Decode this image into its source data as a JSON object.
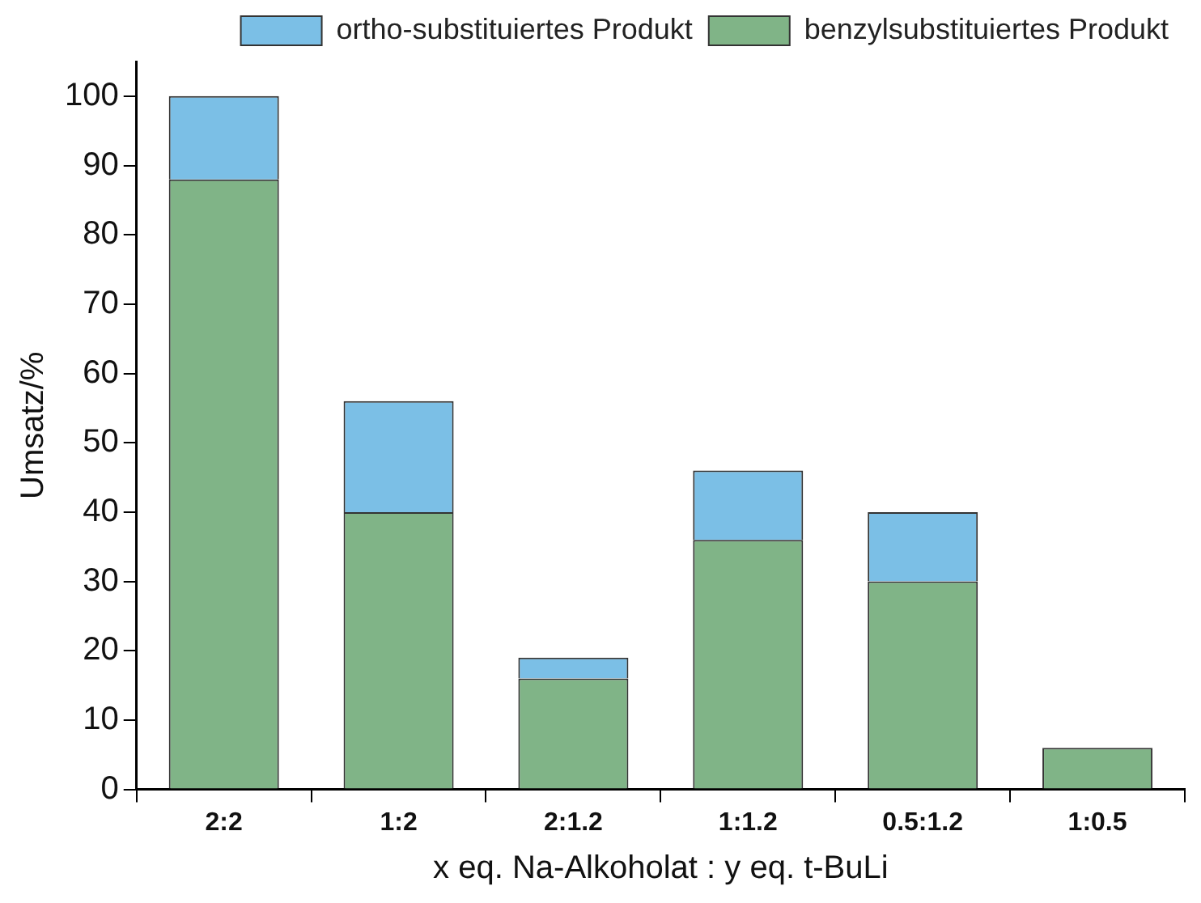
{
  "chart_data": {
    "type": "bar",
    "stacked": true,
    "xlabel": "x eq. Na-Alkoholat : y eq. t-BuLi",
    "ylabel": "Umsatz/%",
    "categories": [
      "2:2",
      "1:2",
      "2:1.2",
      "1:1.2",
      "0.5:1.2",
      "1:0.5"
    ],
    "series": [
      {
        "name": "benzylsubstituiertes Produkt",
        "color": "#80b487",
        "values": [
          88,
          40,
          16,
          36,
          30,
          6
        ]
      },
      {
        "name": "ortho-substituiertes Produkt",
        "color": "#7bbfe6",
        "values": [
          12,
          16,
          3,
          10,
          10,
          null
        ]
      }
    ],
    "ylim": [
      0,
      105
    ],
    "yticks": [
      0,
      10,
      20,
      30,
      40,
      50,
      60,
      70,
      80,
      90,
      100
    ],
    "grid": false,
    "legend": "top right"
  }
}
